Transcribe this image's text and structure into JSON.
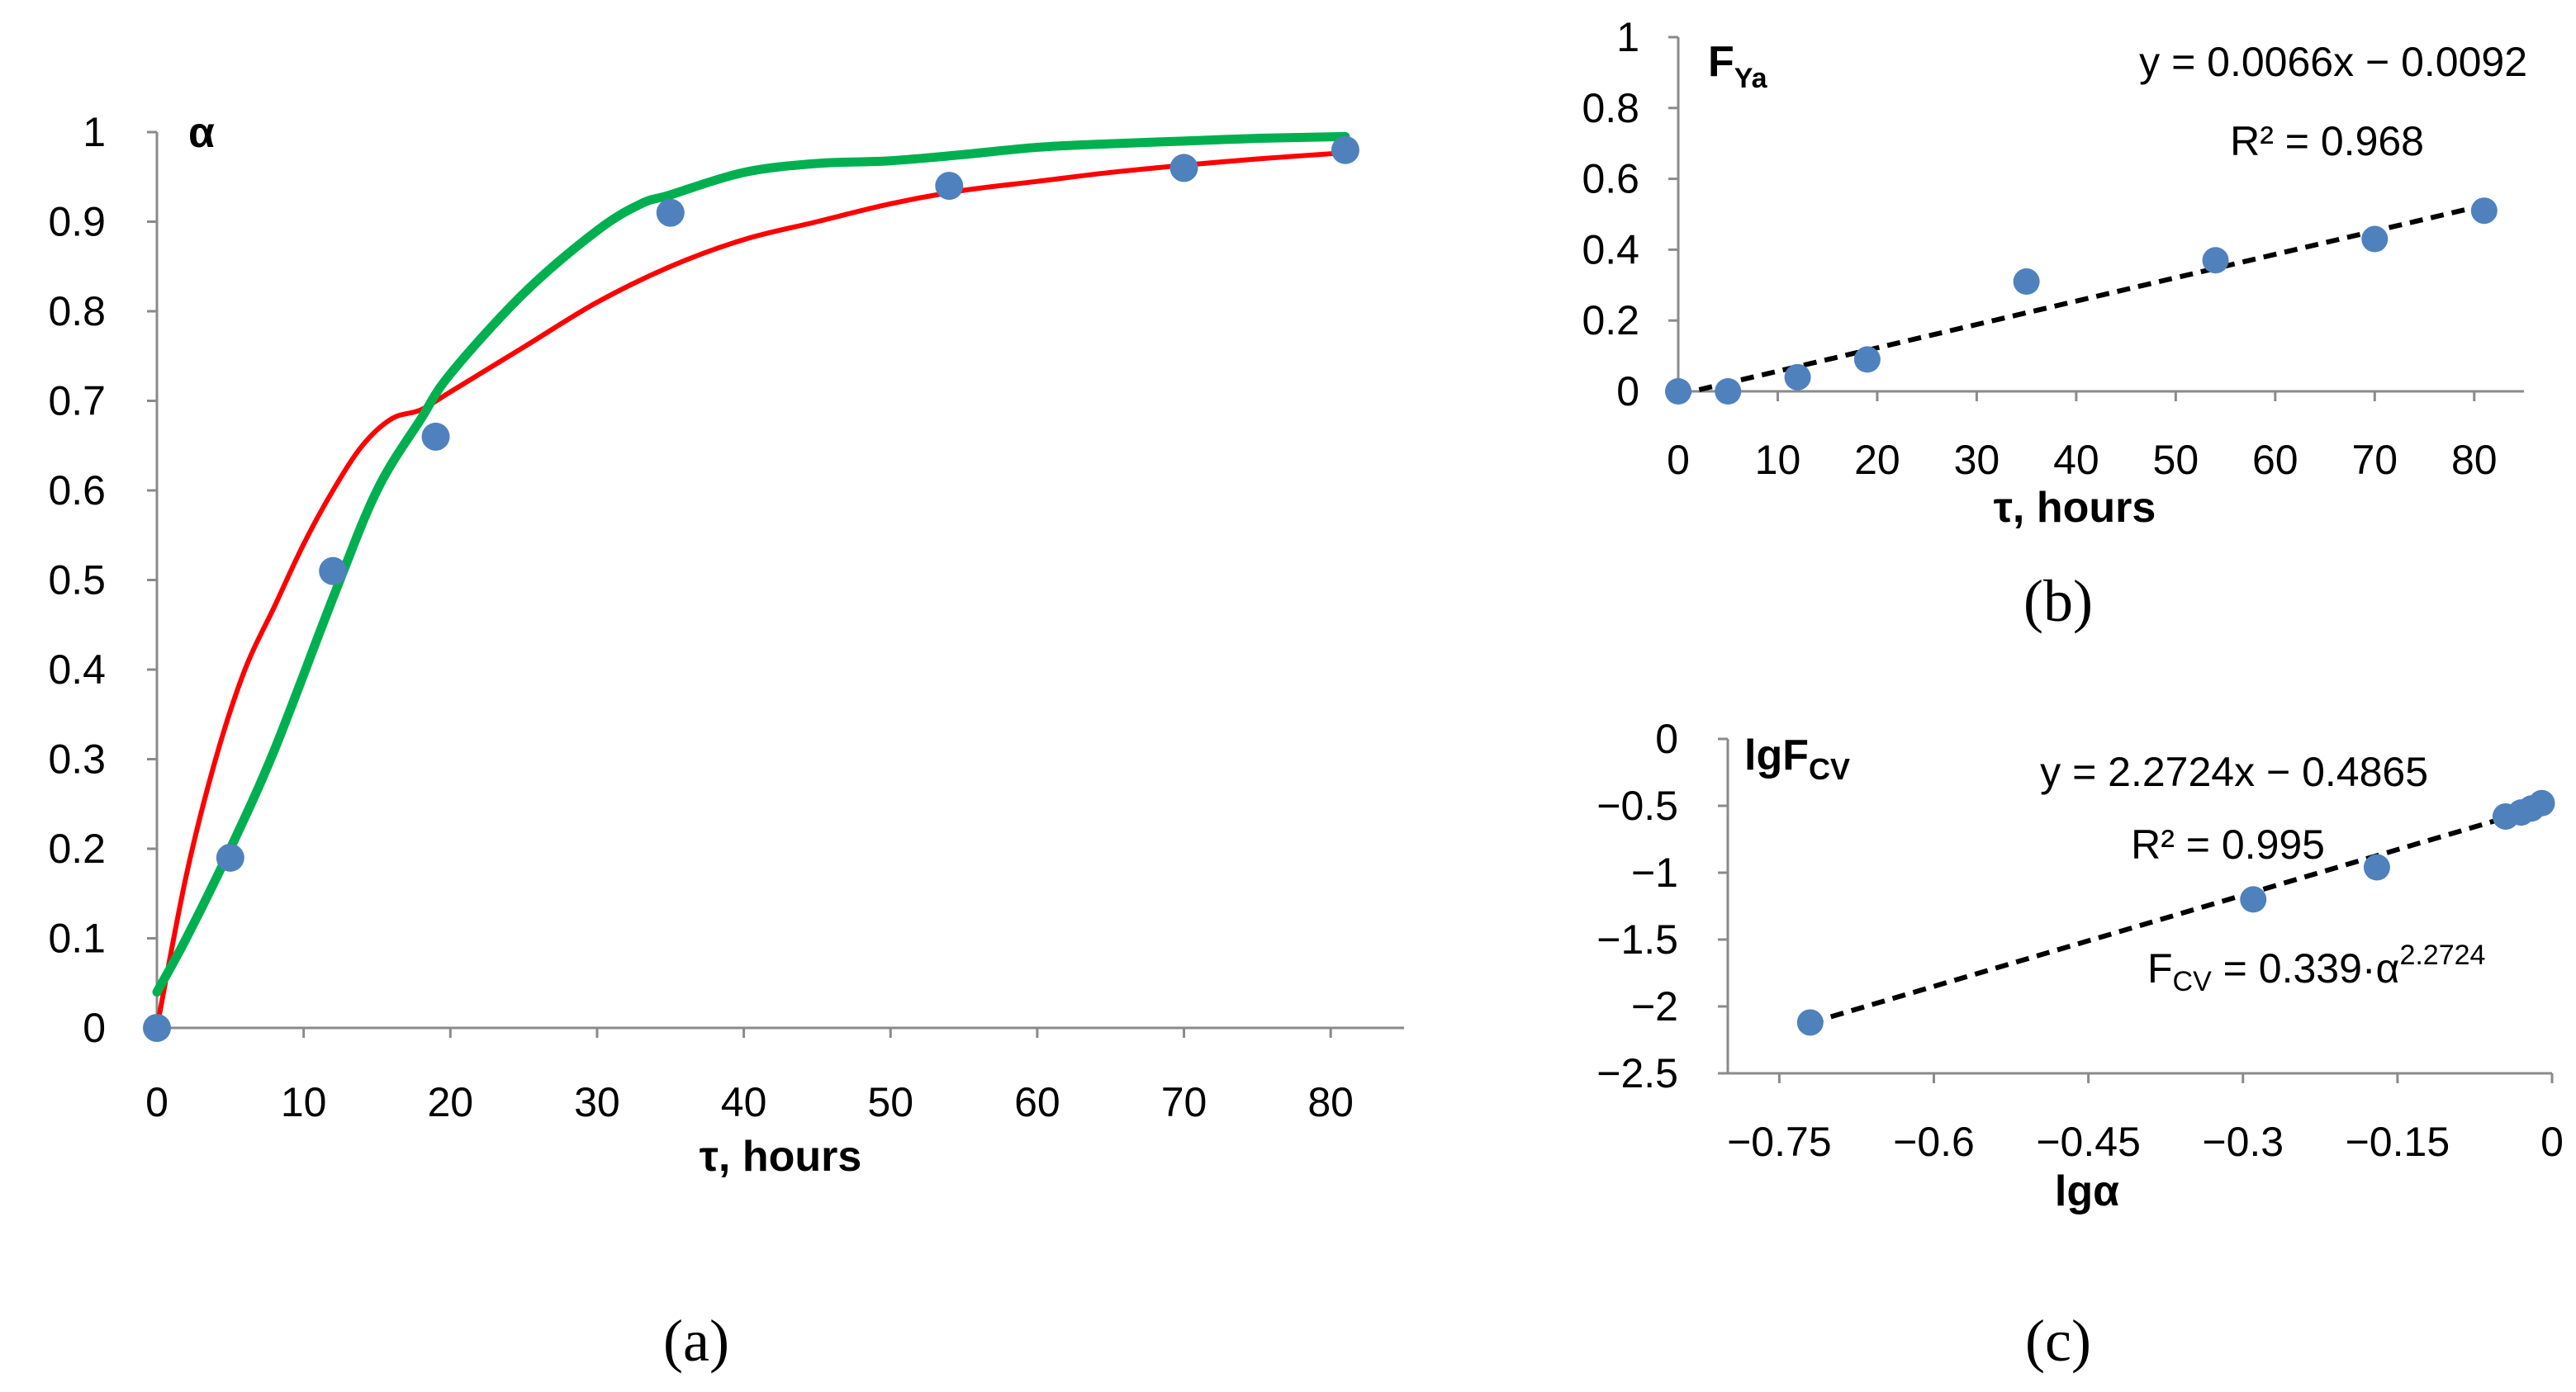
{
  "chart_data": [
    {
      "panel": "(a)",
      "type": "scatter",
      "xlabel": "τ, hours",
      "ylabel": "α",
      "xlim": [
        0,
        85
      ],
      "ylim": [
        0,
        1
      ],
      "xticks": [
        "0",
        "10",
        "20",
        "30",
        "40",
        "50",
        "60",
        "70",
        "80"
      ],
      "yticks": [
        "0",
        "0.1",
        "0.2",
        "0.3",
        "0.4",
        "0.5",
        "0.6",
        "0.7",
        "0.8",
        "0.9",
        "1"
      ],
      "grid": false,
      "points": {
        "x": [
          0,
          5,
          12,
          19,
          35,
          54,
          70,
          81
        ],
        "y": [
          0,
          0.19,
          0.51,
          0.66,
          0.91,
          0.94,
          0.96,
          0.98
        ],
        "color": "#4f81bd"
      },
      "curves": [
        {
          "color": "#ff0000",
          "x": [
            0,
            2,
            4,
            6,
            8,
            10,
            12,
            14,
            16,
            18,
            20,
            25,
            30,
            35,
            40,
            45,
            50,
            55,
            60,
            65,
            70,
            75,
            81
          ],
          "y": [
            0,
            0.17,
            0.3,
            0.4,
            0.47,
            0.54,
            0.6,
            0.65,
            0.68,
            0.69,
            0.71,
            0.76,
            0.81,
            0.85,
            0.88,
            0.9,
            0.92,
            0.935,
            0.945,
            0.955,
            0.963,
            0.97,
            0.977
          ]
        },
        {
          "color": "#00b050",
          "x": [
            0,
            2,
            5,
            8,
            12,
            15,
            18,
            20,
            25,
            30,
            33,
            35,
            40,
            45,
            50,
            55,
            60,
            65,
            70,
            75,
            81
          ],
          "y": [
            0.04,
            0.1,
            0.2,
            0.31,
            0.48,
            0.6,
            0.68,
            0.73,
            0.82,
            0.89,
            0.92,
            0.93,
            0.955,
            0.965,
            0.968,
            0.975,
            0.983,
            0.987,
            0.99,
            0.993,
            0.995
          ]
        }
      ]
    },
    {
      "panel": "(b)",
      "type": "scatter",
      "xlabel": "τ, hours",
      "ylabel": "F",
      "ylabel_sub": "Ya",
      "xlim": [
        0,
        85
      ],
      "ylim": [
        0,
        1
      ],
      "xticks": [
        "0",
        "10",
        "20",
        "30",
        "40",
        "50",
        "60",
        "70",
        "80"
      ],
      "yticks": [
        "0",
        "0.2",
        "0.4",
        "0.6",
        "0.8",
        "1"
      ],
      "grid": false,
      "points": {
        "x": [
          0,
          5,
          12,
          19,
          35,
          54,
          70,
          81
        ],
        "y": [
          0,
          0,
          0.04,
          0.09,
          0.31,
          0.37,
          0.43,
          0.51
        ],
        "color": "#4f81bd"
      },
      "trendline": {
        "slope": 0.0066,
        "intercept": -0.0092,
        "x_range": [
          0,
          81
        ]
      },
      "equation": "y = 0.0066x − 0.0092",
      "r2": "R² = 0.968"
    },
    {
      "panel": "(c)",
      "type": "scatter",
      "xlabel": "lgα",
      "ylabel": "lgF",
      "ylabel_sub": "CV",
      "xlim": [
        -0.8,
        0
      ],
      "ylim": [
        -2.5,
        0
      ],
      "xticks": [
        "−0.75",
        "−0.6",
        "−0.45",
        "−0.3",
        "−0.15",
        "0"
      ],
      "yticks": [
        "−2.5",
        "−2",
        "−1.5",
        "−1",
        "−0.5",
        "0"
      ],
      "grid": false,
      "points": {
        "x": [
          -0.72,
          -0.29,
          -0.17,
          -0.045,
          -0.03,
          -0.02,
          -0.01
        ],
        "y": [
          -2.12,
          -1.2,
          -0.96,
          -0.58,
          -0.55,
          -0.52,
          -0.48
        ],
        "color": "#4f81bd"
      },
      "trendline": {
        "slope": 2.2724,
        "intercept": -0.4865,
        "x_range": [
          -0.72,
          -0.01
        ]
      },
      "equation": "y = 2.2724x − 0.4865",
      "r2": "R² = 0.995",
      "formula": {
        "lhs": "F",
        "lhs_sub": "CV",
        "rhs": " = 0.339·α",
        "power": "2.2724"
      }
    }
  ]
}
